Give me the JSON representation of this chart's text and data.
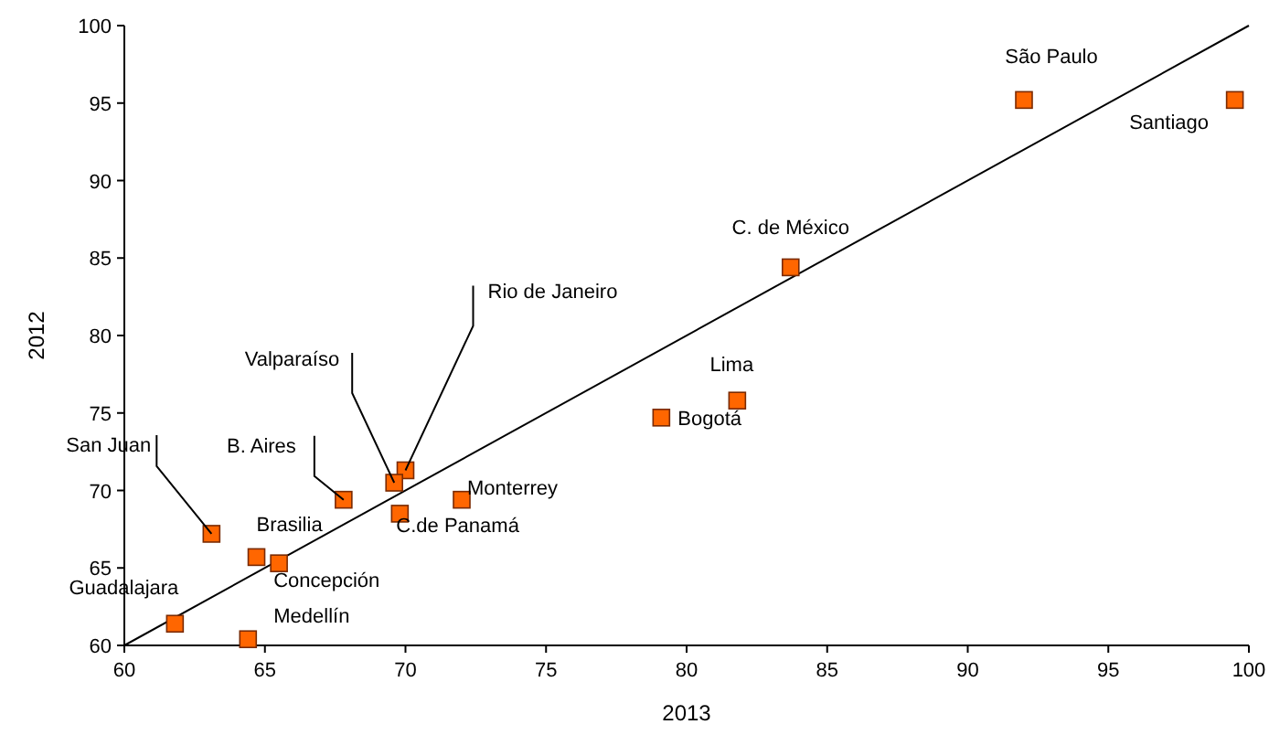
{
  "chart_data": {
    "type": "scatter",
    "xlabel": "2013",
    "ylabel": "2012",
    "grid": false,
    "xlim": [
      60,
      100
    ],
    "xticks": [
      60,
      65,
      70,
      75,
      80,
      85,
      90,
      95,
      100
    ],
    "ylim": [
      60,
      100
    ],
    "yticks": [
      60,
      65,
      70,
      75,
      80,
      85,
      90,
      95,
      100
    ],
    "series": [
      {
        "marker": "square",
        "color": "#ff6600",
        "x": [
          92.0,
          99.5,
          83.7,
          81.8,
          79.1,
          72.0,
          69.8,
          70.0,
          69.6,
          67.8,
          63.1,
          64.7,
          65.5,
          61.8,
          64.4
        ],
        "values": [
          95.2,
          95.2,
          84.4,
          75.8,
          74.7,
          69.4,
          68.5,
          71.3,
          70.5,
          69.4,
          67.2,
          65.7,
          65.3,
          61.4,
          60.4
        ]
      },
      {
        "type": "line",
        "color": "#000000",
        "x": [
          60,
          100
        ],
        "values": [
          60,
          100
        ]
      }
    ],
    "annotations": [
      {
        "text": "São Paulo",
        "x": 92.0,
        "y": 95.2
      },
      {
        "text": "Santiago",
        "x": 99.5,
        "y": 95.2
      },
      {
        "text": "C. de México",
        "x": 83.7,
        "y": 84.4
      },
      {
        "text": "Lima",
        "x": 81.8,
        "y": 75.8
      },
      {
        "text": "Bogotá",
        "x": 79.1,
        "y": 74.7
      },
      {
        "text": "Monterrey",
        "x": 72.0,
        "y": 69.4
      },
      {
        "text": "C.de Panamá",
        "x": 69.8,
        "y": 68.5
      },
      {
        "text": "Rio de Janeiro",
        "x": 70.0,
        "y": 71.3
      },
      {
        "text": "Valparaíso",
        "x": 69.6,
        "y": 70.5
      },
      {
        "text": "B. Aires",
        "x": 67.8,
        "y": 69.4
      },
      {
        "text": "San Juan",
        "x": 63.1,
        "y": 67.2
      },
      {
        "text": "Brasilia",
        "x": 64.7,
        "y": 65.7
      },
      {
        "text": "Concepción",
        "x": 65.5,
        "y": 65.3
      },
      {
        "text": "Guadalajara",
        "x": 61.8,
        "y": 61.4
      },
      {
        "text": "Medellín",
        "x": 64.4,
        "y": 60.4
      }
    ]
  }
}
